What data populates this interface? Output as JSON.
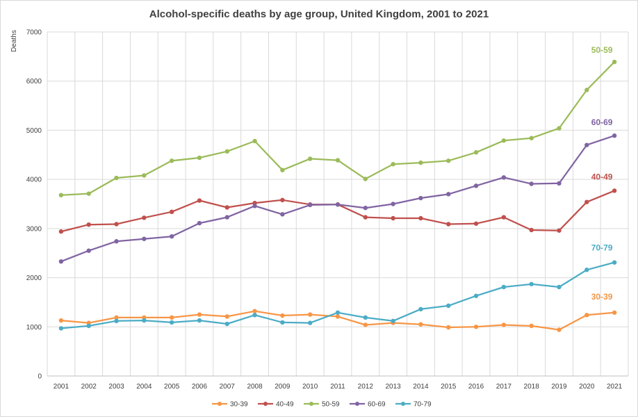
{
  "chart_data": {
    "type": "line",
    "title": "Alcohol-specific deaths by age group, United Kingdom, 2001 to 2021",
    "ylabel": "Deaths",
    "xlabel": "",
    "ylim": [
      0,
      7000
    ],
    "yticks": [
      0,
      1000,
      2000,
      3000,
      4000,
      5000,
      6000,
      7000
    ],
    "grid": true,
    "legend": "bottom",
    "categories": [
      "2001",
      "2002",
      "2003",
      "2004",
      "2005",
      "2006",
      "2007",
      "2008",
      "2009",
      "2010",
      "2011",
      "2012",
      "2013",
      "2014",
      "2015",
      "2016",
      "2017",
      "2018",
      "2019",
      "2020",
      "2021"
    ],
    "series": [
      {
        "name": "30-39",
        "end_label": "30-39",
        "color": "#f79646",
        "values": [
          1130,
          1080,
          1190,
          1190,
          1190,
          1250,
          1210,
          1320,
          1230,
          1250,
          1210,
          1040,
          1080,
          1050,
          990,
          1000,
          1040,
          1020,
          940,
          1240,
          1290
        ]
      },
      {
        "name": "40-49",
        "end_label": "40-49",
        "color": "#c0504d",
        "values": [
          2940,
          3080,
          3090,
          3220,
          3340,
          3570,
          3430,
          3520,
          3580,
          3490,
          3490,
          3230,
          3210,
          3210,
          3090,
          3100,
          3230,
          2970,
          2960,
          3540,
          3770
        ]
      },
      {
        "name": "50-59",
        "end_label": "50-59",
        "color": "#9bbb59",
        "values": [
          3680,
          3710,
          4030,
          4080,
          4380,
          4440,
          4570,
          4780,
          4190,
          4420,
          4390,
          4010,
          4310,
          4340,
          4380,
          4550,
          4790,
          4840,
          5040,
          5820,
          6390
        ]
      },
      {
        "name": "60-69",
        "end_label": "60-69",
        "color": "#8064a2",
        "values": [
          2330,
          2550,
          2740,
          2790,
          2840,
          3110,
          3230,
          3460,
          3290,
          3480,
          3490,
          3420,
          3500,
          3620,
          3700,
          3870,
          4040,
          3910,
          3920,
          4700,
          4890
        ]
      },
      {
        "name": "70-79",
        "end_label": "70-79",
        "color": "#4bacc6",
        "values": [
          970,
          1020,
          1120,
          1130,
          1090,
          1130,
          1060,
          1240,
          1090,
          1080,
          1290,
          1190,
          1120,
          1360,
          1430,
          1630,
          1810,
          1870,
          1810,
          2160,
          2310
        ]
      }
    ]
  }
}
